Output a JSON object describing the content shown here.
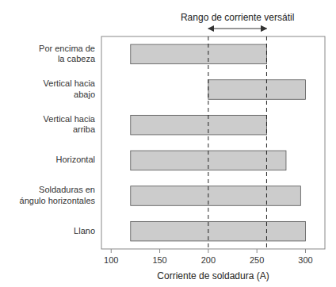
{
  "chart_data": {
    "type": "bar",
    "orientation": "horizontal",
    "categories": [
      "Llano",
      "Soldaduras en\nángulo horizontales",
      "Horizontal",
      "Vertical hacia\narriba",
      "Vertical hacia\nabajo",
      "Por encima de\nla cabeza"
    ],
    "starts": [
      120,
      120,
      120,
      120,
      200,
      120
    ],
    "values": [
      300,
      295,
      280,
      260,
      300,
      260
    ],
    "color": "#cccccc",
    "reference_lines": [
      200,
      260
    ],
    "annotation": {
      "text": "Rango de corriente versátil",
      "from": 200,
      "to": 260
    },
    "xlabel": "Corriente de soldadura (A)",
    "xlim": [
      90,
      320
    ],
    "xticks": [
      100,
      150,
      200,
      250,
      300
    ],
    "grid": false
  }
}
